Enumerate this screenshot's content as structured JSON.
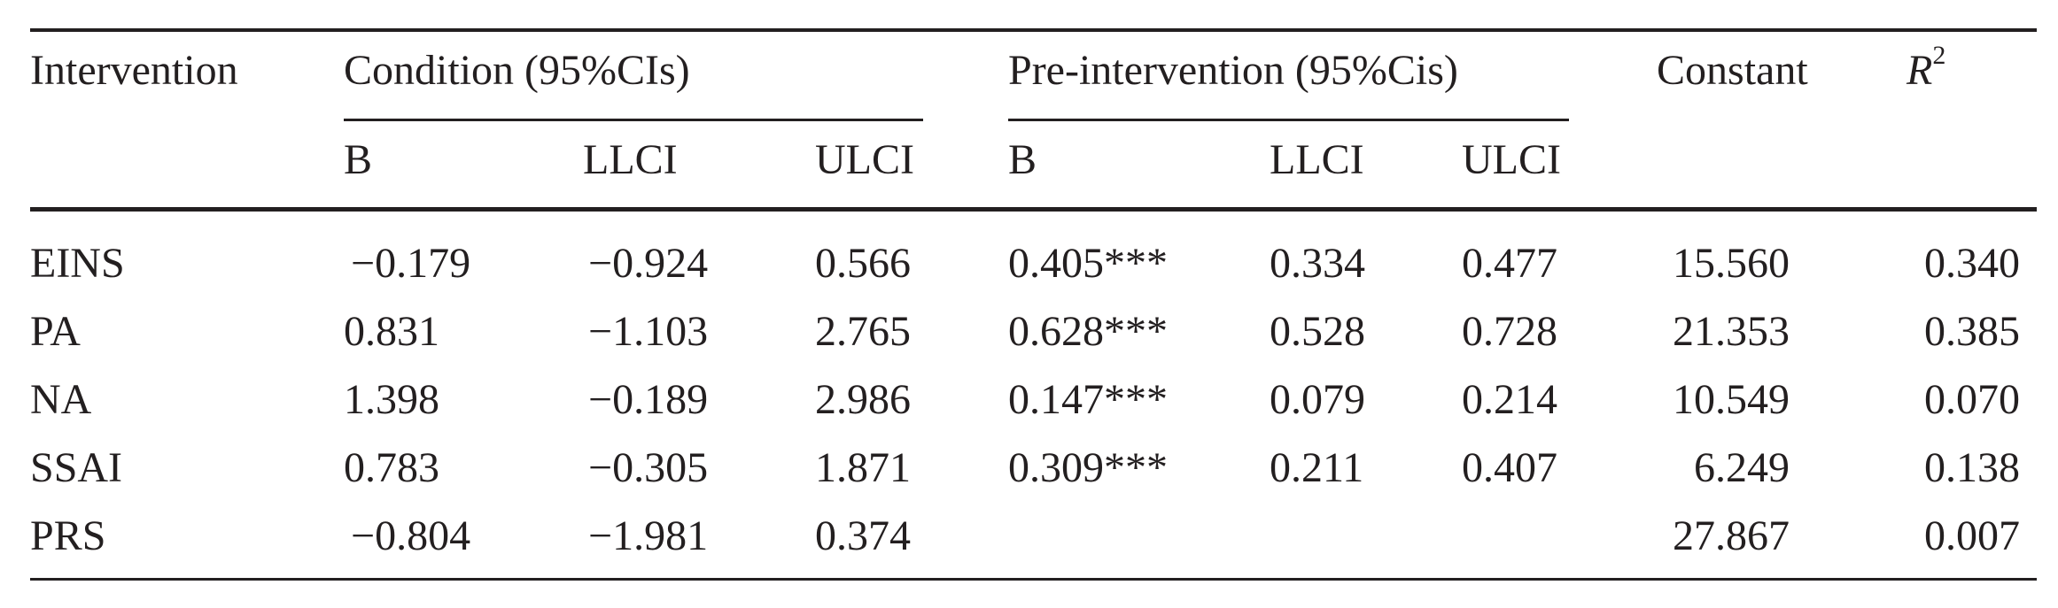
{
  "table": {
    "headers": {
      "intervention": "Intervention",
      "condition_group": "Condition (95%CIs)",
      "pre_group": "Pre-intervention (95%Cis)",
      "constant": "Constant",
      "r2_base": "R",
      "r2_sup": "2",
      "sub": [
        "B",
        "LLCI",
        "ULCI",
        "B",
        "LLCI",
        "ULCI"
      ]
    },
    "rows": [
      {
        "label": "EINS",
        "cond_b": "−0.179",
        "cond_llci": "−0.924",
        "cond_ulci": "0.566",
        "pre_b": "0.405***",
        "pre_llci": "0.334",
        "pre_ulci": "0.477",
        "constant": "15.560",
        "r2": "0.340"
      },
      {
        "label": "PA",
        "cond_b": "0.831",
        "cond_llci": "−1.103",
        "cond_ulci": "2.765",
        "pre_b": "0.628***",
        "pre_llci": "0.528",
        "pre_ulci": "0.728",
        "constant": "21.353",
        "r2": "0.385"
      },
      {
        "label": "NA",
        "cond_b": "1.398",
        "cond_llci": "−0.189",
        "cond_ulci": "2.986",
        "pre_b": "0.147***",
        "pre_llci": "0.079",
        "pre_ulci": "0.214",
        "constant": "10.549",
        "r2": "0.070"
      },
      {
        "label": "SSAI",
        "cond_b": "0.783",
        "cond_llci": "−0.305",
        "cond_ulci": "1.871",
        "pre_b": "0.309***",
        "pre_llci": "0.211",
        "pre_ulci": "0.407",
        "constant": "6.249",
        "r2": "0.138"
      },
      {
        "label": "PRS",
        "cond_b": "−0.804",
        "cond_llci": "−1.981",
        "cond_ulci": "0.374",
        "pre_b": "",
        "pre_llci": "",
        "pre_ulci": "",
        "constant": "27.867",
        "r2": "0.007"
      }
    ]
  }
}
